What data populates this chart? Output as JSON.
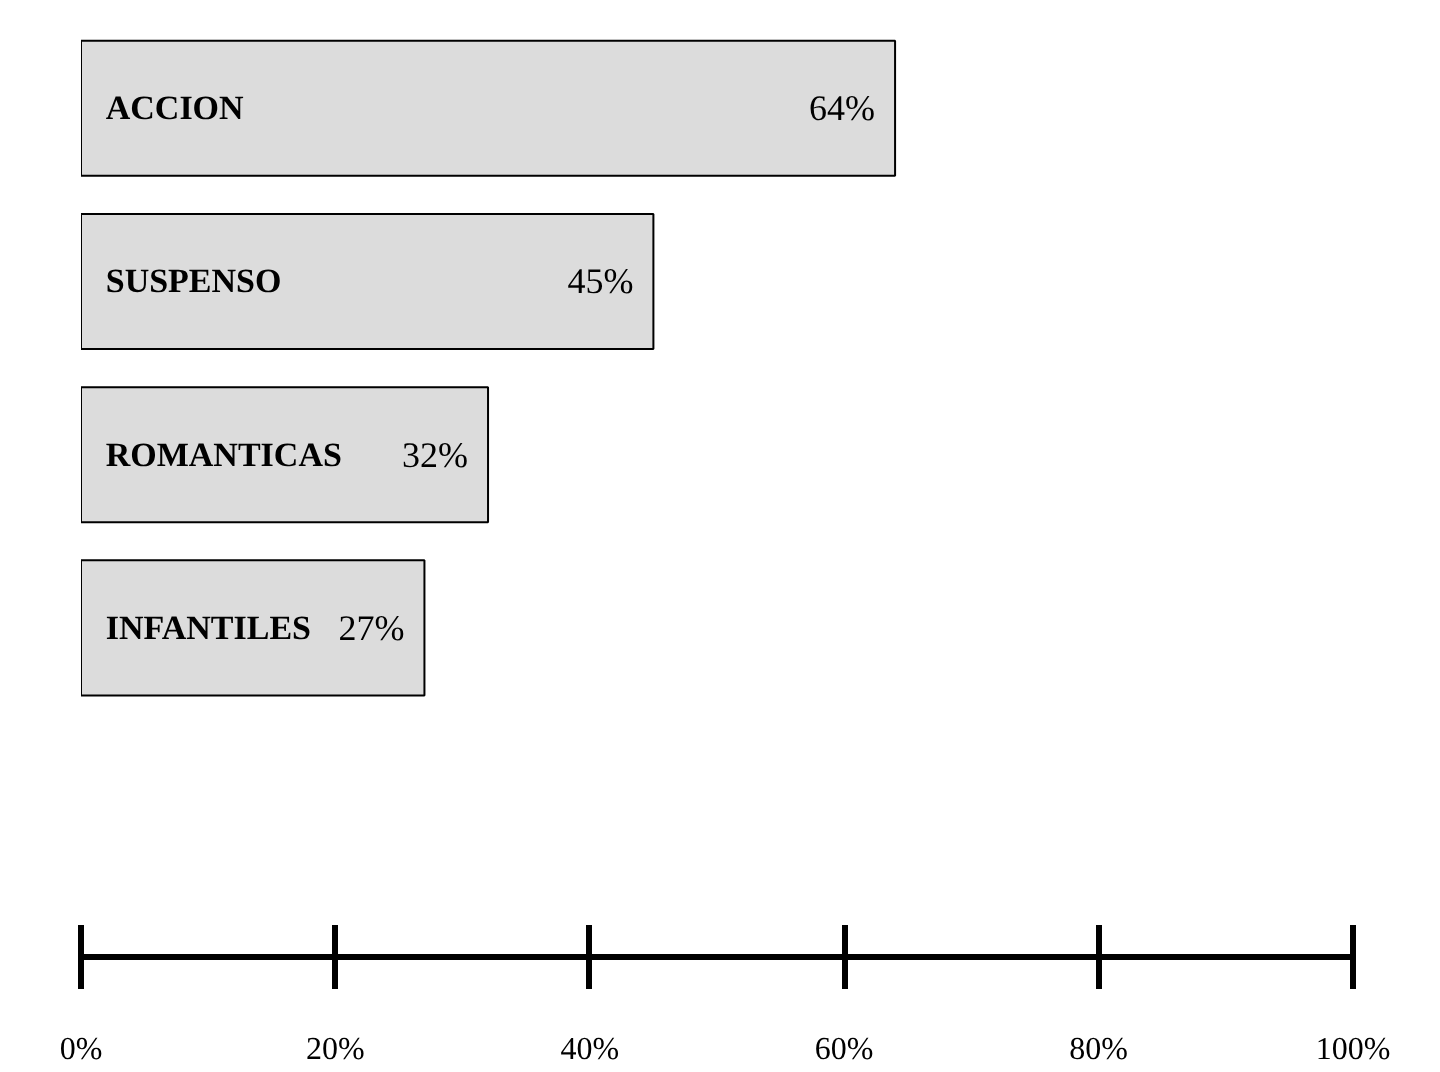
{
  "chart_data": {
    "type": "bar",
    "orientation": "horizontal",
    "categories": [
      "ACCION",
      "SUSPENSO",
      "ROMANTICAS",
      "INFANTILES"
    ],
    "values": [
      64,
      45,
      32,
      27
    ],
    "color": "#dcdcdc",
    "value_labels": [
      "64%",
      "45%",
      "32%",
      "27%"
    ],
    "xlim": [
      0,
      100
    ],
    "xticks": [
      {
        "value": 0,
        "label": "0%"
      },
      {
        "value": 20,
        "label": "20%"
      },
      {
        "value": 40,
        "label": "40%"
      },
      {
        "value": 60,
        "label": "60%"
      },
      {
        "value": 80,
        "label": "80%"
      },
      {
        "value": 100,
        "label": "100%"
      }
    ],
    "tick_labels": "x",
    "grid": false
  }
}
